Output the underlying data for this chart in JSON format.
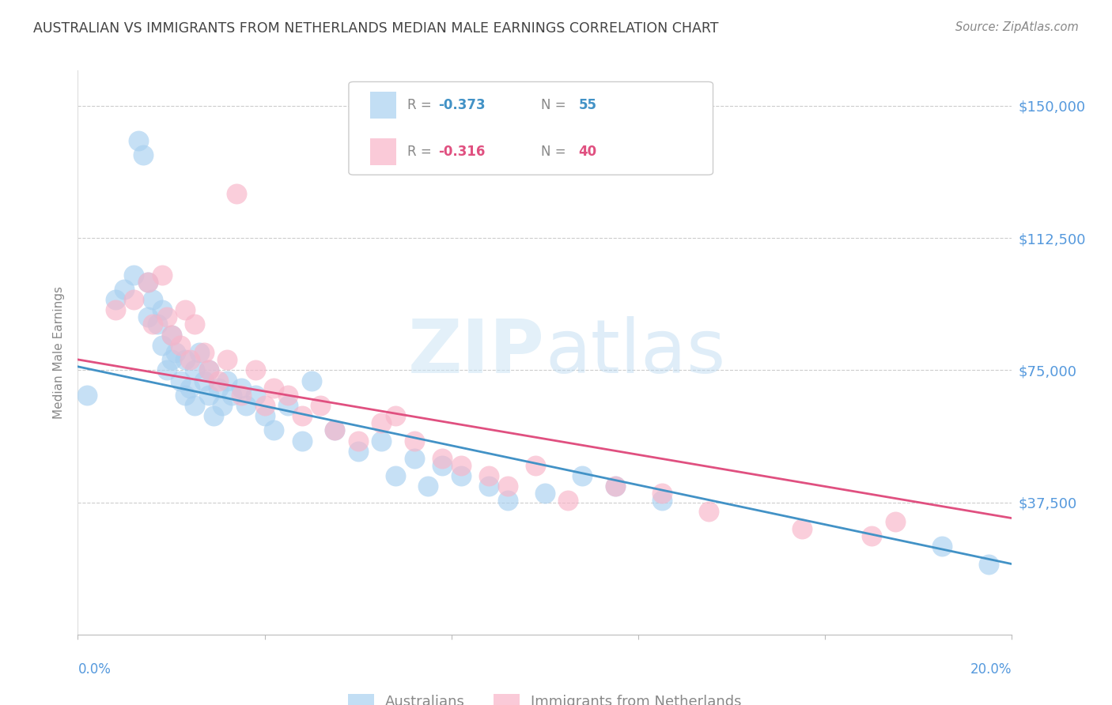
{
  "title": "AUSTRALIAN VS IMMIGRANTS FROM NETHERLANDS MEDIAN MALE EARNINGS CORRELATION CHART",
  "source": "Source: ZipAtlas.com",
  "ylabel": "Median Male Earnings",
  "yticks": [
    0,
    37500,
    75000,
    112500,
    150000
  ],
  "ytick_labels": [
    "",
    "$37,500",
    "$75,000",
    "$112,500",
    "$150,000"
  ],
  "xlim": [
    0.0,
    0.2
  ],
  "ylim": [
    0,
    160000
  ],
  "watermark_zip": "ZIP",
  "watermark_atlas": "atlas",
  "legend_blue_r": "-0.373",
  "legend_blue_n": "55",
  "legend_pink_r": "-0.316",
  "legend_pink_n": "40",
  "blue_color": "#a8d0f0",
  "pink_color": "#f8b4c8",
  "line_blue": "#4292c6",
  "line_pink": "#e05080",
  "title_color": "#444444",
  "source_color": "#888888",
  "ytick_color": "#5599dd",
  "ylabel_color": "#888888",
  "legend_text_color": "#888888",
  "legend_value_color_blue": "#4292c6",
  "legend_value_color_pink": "#e05080",
  "grid_color": "#cccccc",
  "blue_scatter_x": [
    0.002,
    0.008,
    0.01,
    0.012,
    0.013,
    0.014,
    0.015,
    0.015,
    0.016,
    0.017,
    0.018,
    0.018,
    0.019,
    0.02,
    0.02,
    0.021,
    0.022,
    0.023,
    0.023,
    0.024,
    0.025,
    0.025,
    0.026,
    0.027,
    0.028,
    0.028,
    0.029,
    0.03,
    0.031,
    0.032,
    0.033,
    0.035,
    0.036,
    0.038,
    0.04,
    0.042,
    0.045,
    0.048,
    0.05,
    0.055,
    0.06,
    0.065,
    0.068,
    0.072,
    0.075,
    0.078,
    0.082,
    0.088,
    0.092,
    0.1,
    0.108,
    0.115,
    0.125,
    0.185,
    0.195
  ],
  "blue_scatter_y": [
    68000,
    95000,
    98000,
    102000,
    140000,
    136000,
    90000,
    100000,
    95000,
    88000,
    82000,
    92000,
    75000,
    78000,
    85000,
    80000,
    72000,
    78000,
    68000,
    70000,
    75000,
    65000,
    80000,
    72000,
    68000,
    75000,
    62000,
    70000,
    65000,
    72000,
    68000,
    70000,
    65000,
    68000,
    62000,
    58000,
    65000,
    55000,
    72000,
    58000,
    52000,
    55000,
    45000,
    50000,
    42000,
    48000,
    45000,
    42000,
    38000,
    40000,
    45000,
    42000,
    38000,
    25000,
    20000
  ],
  "pink_scatter_x": [
    0.008,
    0.012,
    0.015,
    0.016,
    0.018,
    0.019,
    0.02,
    0.022,
    0.023,
    0.024,
    0.025,
    0.027,
    0.028,
    0.03,
    0.032,
    0.034,
    0.035,
    0.038,
    0.04,
    0.042,
    0.045,
    0.048,
    0.052,
    0.055,
    0.06,
    0.065,
    0.068,
    0.072,
    0.078,
    0.082,
    0.088,
    0.092,
    0.098,
    0.105,
    0.115,
    0.125,
    0.135,
    0.155,
    0.17,
    0.175
  ],
  "pink_scatter_y": [
    92000,
    95000,
    100000,
    88000,
    102000,
    90000,
    85000,
    82000,
    92000,
    78000,
    88000,
    80000,
    75000,
    72000,
    78000,
    125000,
    68000,
    75000,
    65000,
    70000,
    68000,
    62000,
    65000,
    58000,
    55000,
    60000,
    62000,
    55000,
    50000,
    48000,
    45000,
    42000,
    48000,
    38000,
    42000,
    40000,
    35000,
    30000,
    28000,
    32000
  ],
  "blue_trend_x": [
    0.0,
    0.2
  ],
  "blue_trend_y": [
    76000,
    20000
  ],
  "pink_trend_x": [
    0.0,
    0.2
  ],
  "pink_trend_y": [
    78000,
    33000
  ]
}
